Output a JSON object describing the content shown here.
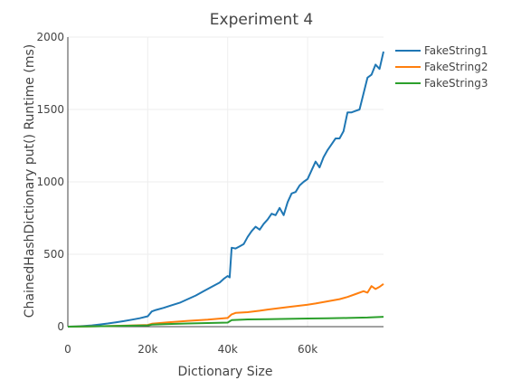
{
  "chart_data": {
    "type": "line",
    "title": "Experiment 4",
    "xlabel": "Dictionary Size",
    "ylabel": "ChainedHashDictionary put() Runtime (ms)",
    "xlim": [
      0,
      79000
    ],
    "ylim": [
      0,
      2000
    ],
    "xticks": [
      0,
      20000,
      40000,
      60000
    ],
    "xticklabels": [
      "0",
      "20k",
      "40k",
      "60k"
    ],
    "yticks": [
      0,
      500,
      1000,
      1500,
      2000
    ],
    "yticklabels": [
      "0",
      "500",
      "1000",
      "1500",
      "2000"
    ],
    "grid": true,
    "legend_position": "top-right",
    "series": [
      {
        "name": "FakeString1",
        "color": "#1f77b4",
        "x": [
          0,
          2000,
          4000,
          6000,
          8000,
          10000,
          12000,
          14000,
          16000,
          18000,
          20000,
          21000,
          22000,
          24000,
          26000,
          28000,
          30000,
          32000,
          34000,
          36000,
          38000,
          39000,
          40000,
          40500,
          41000,
          42000,
          43000,
          44000,
          45000,
          46000,
          47000,
          48000,
          49000,
          50000,
          51000,
          52000,
          53000,
          54000,
          55000,
          56000,
          57000,
          58000,
          59000,
          60000,
          61000,
          62000,
          63000,
          64000,
          65000,
          66000,
          67000,
          68000,
          69000,
          70000,
          71000,
          72000,
          73000,
          74000,
          75000,
          76000,
          77000,
          78000,
          79000
        ],
        "values": [
          0,
          2,
          5,
          9,
          15,
          22,
          30,
          38,
          48,
          58,
          72,
          105,
          115,
          130,
          148,
          165,
          190,
          215,
          245,
          275,
          305,
          330,
          350,
          340,
          545,
          540,
          555,
          570,
          620,
          660,
          690,
          670,
          710,
          740,
          780,
          770,
          820,
          770,
          860,
          920,
          930,
          975,
          1000,
          1020,
          1080,
          1140,
          1100,
          1170,
          1220,
          1260,
          1300,
          1300,
          1350,
          1480,
          1480,
          1490,
          1500,
          1610,
          1720,
          1740,
          1810,
          1780,
          1900
        ]
      },
      {
        "name": "FakeString2",
        "color": "#ff7f0e",
        "x": [
          0,
          5000,
          10000,
          15000,
          20000,
          21000,
          25000,
          30000,
          35000,
          40000,
          41000,
          42000,
          45000,
          48000,
          50000,
          55000,
          60000,
          62000,
          65000,
          68000,
          70000,
          72000,
          74000,
          75000,
          76000,
          77000,
          78000,
          79000
        ],
        "values": [
          0,
          2,
          4,
          8,
          12,
          20,
          30,
          40,
          48,
          60,
          85,
          95,
          100,
          110,
          118,
          135,
          152,
          160,
          175,
          190,
          205,
          225,
          245,
          235,
          280,
          260,
          275,
          295
        ]
      },
      {
        "name": "FakeString3",
        "color": "#2ca02c",
        "x": [
          0,
          5000,
          10000,
          15000,
          20000,
          21000,
          25000,
          30000,
          35000,
          40000,
          41000,
          45000,
          50000,
          55000,
          60000,
          65000,
          70000,
          75000,
          79000
        ],
        "values": [
          0,
          2,
          4,
          6,
          9,
          14,
          18,
          22,
          25,
          28,
          45,
          50,
          52,
          54,
          56,
          58,
          60,
          63,
          68
        ]
      }
    ]
  }
}
